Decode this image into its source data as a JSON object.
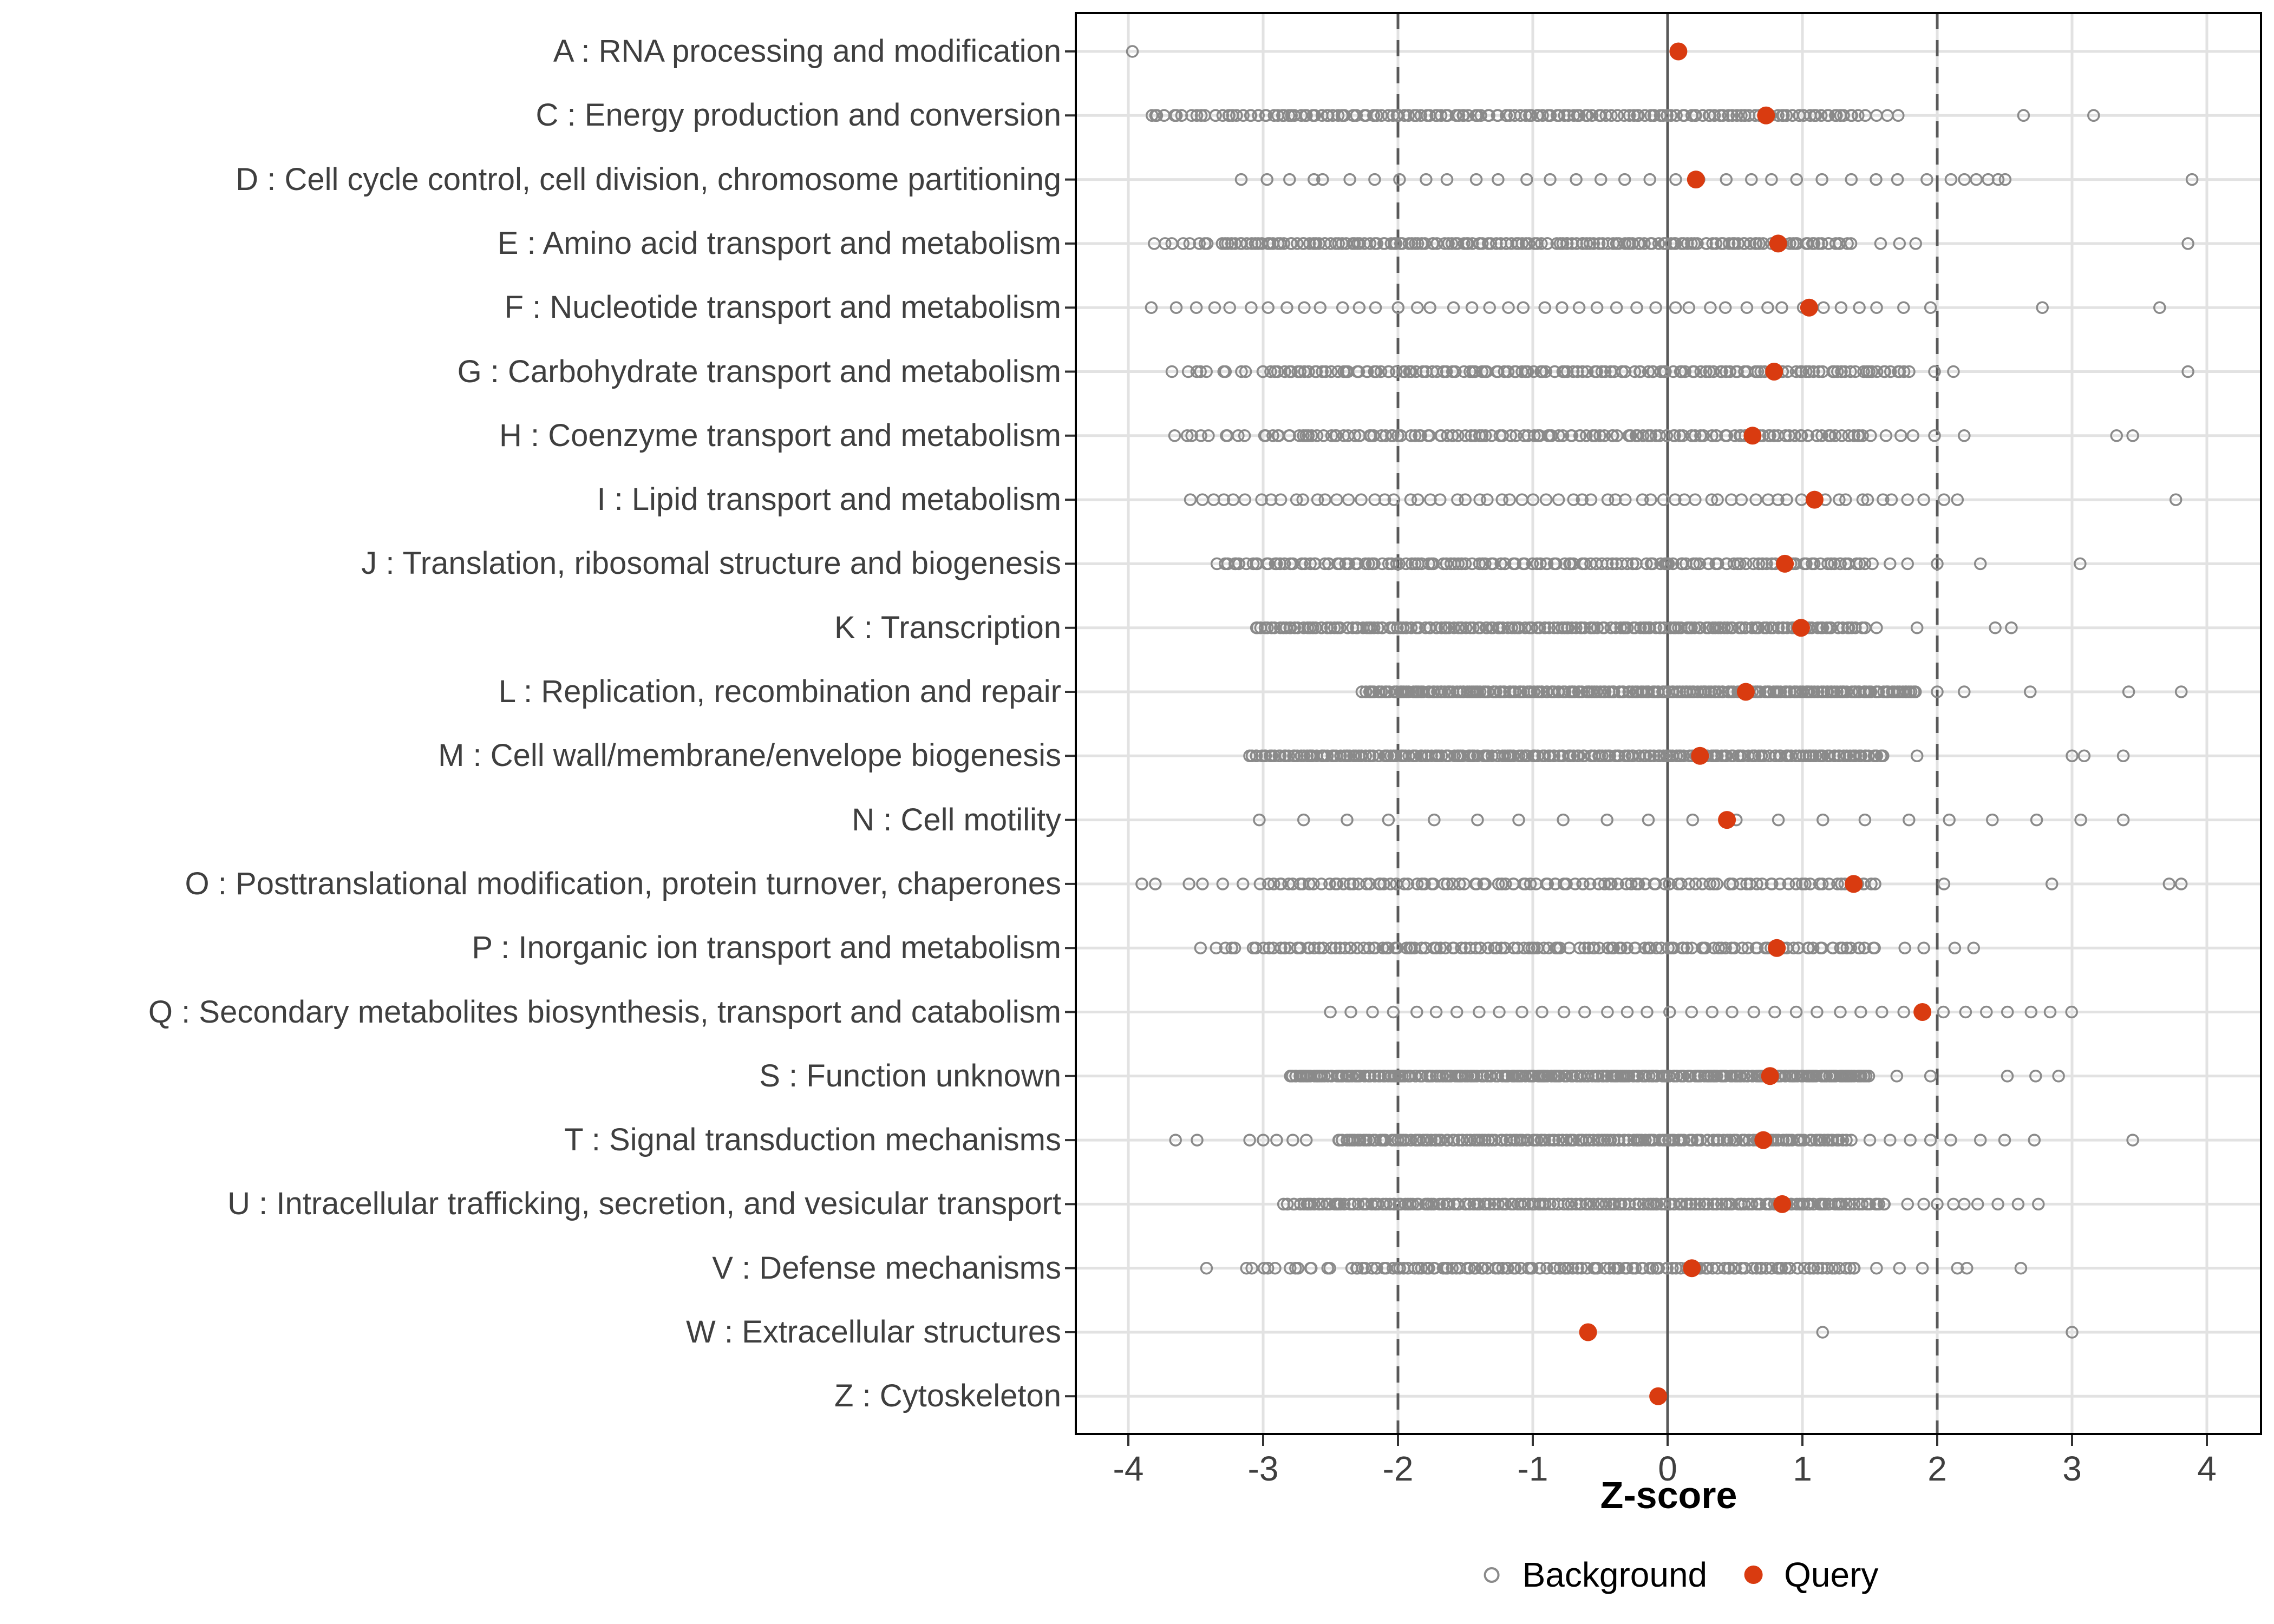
{
  "chart_data": {
    "type": "scatter",
    "subtype": "strip-plot-by-category",
    "title": "",
    "xlabel": "Z-score",
    "ylabel": "",
    "xlim": [
      -4.35,
      4.4
    ],
    "x_ticks": [
      -4,
      -3,
      -2,
      -1,
      0,
      1,
      2,
      3,
      4
    ],
    "grid": "on",
    "reference_lines": {
      "solid": [
        0
      ],
      "dashed": [
        -2,
        2
      ]
    },
    "legend": [
      "Background",
      "Query"
    ],
    "legend_position": "bottom",
    "colors": {
      "query": "#d93b10",
      "background_stroke": "#8a8a8a",
      "gridline": "#e2e2e2",
      "reference_line": "#595959",
      "axis_text": "#3f3f3f",
      "panel_border": "#000000"
    },
    "categories": [
      {
        "code": "A",
        "label": "A : RNA processing and modification",
        "query": 0.08,
        "bg_segments": [],
        "bg_points": [
          -3.97
        ]
      },
      {
        "code": "C",
        "label": "C : Energy production and conversion",
        "query": 0.73,
        "bg_segments": [
          [
            -3.85,
            -3.3,
            14,
            1
          ],
          [
            -3.27,
            1.45,
            155,
            1
          ]
        ],
        "bg_points": [
          1.55,
          1.63,
          1.71,
          2.64,
          3.16
        ]
      },
      {
        "code": "D",
        "label": "D : Cell cycle control, cell division, chromosome partitioning",
        "query": 0.21,
        "bg_segments": [
          [
            -3.16,
            -2.62,
            4,
            0.2
          ],
          [
            -2.55,
            2.09,
            26,
            0.15
          ],
          [
            2.2,
            2.52,
            5,
            0.3
          ]
        ],
        "bg_points": [
          3.89
        ]
      },
      {
        "code": "E",
        "label": "E : Amino acid transport and metabolism",
        "query": 0.82,
        "bg_segments": [
          [
            -3.8,
            -3.4,
            8,
            1
          ],
          [
            -3.32,
            1.35,
            165,
            1
          ]
        ],
        "bg_points": [
          1.58,
          1.72,
          1.84,
          3.86
        ]
      },
      {
        "code": "F",
        "label": "F : Nucleotide transport and metabolism",
        "query": 1.05,
        "bg_segments": [
          [
            -3.8,
            1.55,
            40,
            0.3
          ]
        ],
        "bg_points": [
          1.75,
          1.95,
          2.78,
          3.65
        ]
      },
      {
        "code": "G",
        "label": "G : Carbohydrate transport and metabolism",
        "query": 0.79,
        "bg_segments": [
          [
            -3.65,
            -3.05,
            10,
            1
          ],
          [
            -2.98,
            1.8,
            145,
            1
          ]
        ],
        "bg_points": [
          1.98,
          2.12,
          3.86
        ]
      },
      {
        "code": "H",
        "label": "H : Coenzyme transport and metabolism",
        "query": 0.63,
        "bg_segments": [
          [
            -3.64,
            -3.1,
            9,
            1
          ],
          [
            -3.0,
            1.5,
            130,
            1
          ]
        ],
        "bg_points": [
          1.62,
          1.73,
          1.82,
          1.98,
          2.2,
          3.33,
          3.45
        ]
      },
      {
        "code": "I",
        "label": "I : Lipid transport and metabolism",
        "query": 1.09,
        "bg_segments": [
          [
            -3.55,
            1.68,
            62,
            0.4
          ]
        ],
        "bg_points": [
          1.78,
          1.9,
          2.05,
          2.15,
          3.77
        ]
      },
      {
        "code": "J",
        "label": "J : Translation, ribosomal structure and biogenesis",
        "query": 0.87,
        "bg_segments": [
          [
            -3.33,
            1.5,
            145,
            1
          ]
        ],
        "bg_points": [
          1.65,
          1.78,
          2.0,
          2.32,
          3.06
        ]
      },
      {
        "code": "K",
        "label": "K : Transcription",
        "query": 0.99,
        "bg_segments": [
          [
            -3.05,
            1.45,
            185,
            1
          ]
        ],
        "bg_points": [
          1.55,
          1.85,
          2.43,
          2.55
        ]
      },
      {
        "code": "L",
        "label": "L : Replication, recombination and repair",
        "query": 0.58,
        "bg_segments": [
          [
            -2.26,
            1.85,
            225,
            1
          ]
        ],
        "bg_points": [
          2.0,
          2.2,
          2.69,
          3.42,
          3.81
        ]
      },
      {
        "code": "M",
        "label": "M : Cell wall/membrane/envelope biogenesis",
        "query": 0.24,
        "bg_segments": [
          [
            -3.1,
            1.6,
            225,
            1
          ]
        ],
        "bg_points": [
          1.85,
          3.0,
          3.09,
          3.38
        ]
      },
      {
        "code": "N",
        "label": "N : Cell motility",
        "query": 0.44,
        "bg_segments": [
          [
            -3.02,
            3.06,
            20,
            0.05
          ]
        ],
        "bg_points": [
          3.38
        ]
      },
      {
        "code": "O",
        "label": "O : Posttranslational modification, protein turnover, chaperones",
        "query": 1.38,
        "bg_segments": [
          [
            -3.0,
            1.55,
            115,
            1
          ]
        ],
        "bg_points": [
          -3.9,
          -3.8,
          -3.55,
          -3.45,
          -3.3,
          -3.15,
          2.05,
          2.85,
          3.72,
          3.81
        ]
      },
      {
        "code": "P",
        "label": "P : Inorganic ion transport and metabolism",
        "query": 0.81,
        "bg_segments": [
          [
            -3.43,
            -3.2,
            5,
            1
          ],
          [
            -3.1,
            1.55,
            135,
            1
          ]
        ],
        "bg_points": [
          1.76,
          1.9,
          2.13,
          2.27
        ]
      },
      {
        "code": "Q",
        "label": "Q : Secondary metabolites biosynthesis, transport and catabolism",
        "query": 1.89,
        "bg_segments": [
          [
            -2.5,
            3.0,
            36,
            0.1
          ]
        ],
        "bg_points": []
      },
      {
        "code": "S",
        "label": "S : Function unknown",
        "query": 0.76,
        "bg_segments": [
          [
            -2.8,
            1.5,
            245,
            1
          ]
        ],
        "bg_points": [
          1.7,
          1.95,
          2.52,
          2.73,
          2.9
        ]
      },
      {
        "code": "T",
        "label": "T : Signal transduction mechanisms",
        "query": 0.71,
        "bg_segments": [
          [
            -2.45,
            1.35,
            175,
            1
          ]
        ],
        "bg_points": [
          -3.65,
          -3.49,
          -3.1,
          -3.0,
          -2.9,
          -2.78,
          -2.68,
          1.5,
          1.65,
          1.8,
          1.95,
          2.1,
          2.32,
          2.5,
          2.72,
          3.45
        ]
      },
      {
        "code": "U",
        "label": "U : Intracellular trafficking, secretion, and vesicular transport",
        "query": 0.85,
        "bg_segments": [
          [
            -2.85,
            1.62,
            195,
            1
          ]
        ],
        "bg_points": [
          1.78,
          1.9,
          2.0,
          2.12,
          2.2,
          2.3,
          2.45,
          2.6,
          2.75
        ]
      },
      {
        "code": "V",
        "label": "V : Defense mechanisms",
        "query": 0.18,
        "bg_segments": [
          [
            -3.12,
            -2.5,
            12,
            1
          ],
          [
            -2.35,
            1.4,
            125,
            1
          ]
        ],
        "bg_points": [
          -3.42,
          1.55,
          1.72,
          1.89,
          2.15,
          2.22,
          2.62
        ]
      },
      {
        "code": "W",
        "label": "W : Extracellular structures",
        "query": -0.59,
        "bg_segments": [],
        "bg_points": [
          1.15,
          3.0
        ]
      },
      {
        "code": "Z",
        "label": "Z : Cytoskeleton",
        "query": -0.07,
        "bg_segments": [],
        "bg_points": []
      }
    ]
  }
}
